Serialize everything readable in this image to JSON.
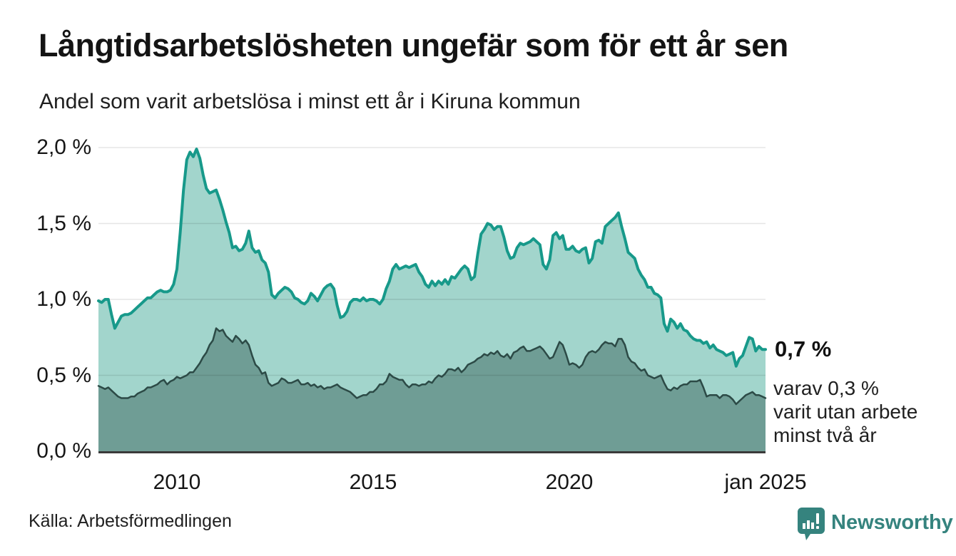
{
  "title": "Långtidsarbetslösheten ungefär som för ett år sen",
  "subtitle": "Andel som varit arbetslösa i minst ett år i Kiruna kommun",
  "annotation": {
    "value_label": "0,7 %",
    "detail_lines": [
      "varav 0,3 %",
      "varit utan arbete",
      "minst två år"
    ]
  },
  "source": "Källa: Arbetsförmedlingen",
  "logo": {
    "name": "Newsworthy"
  },
  "colors": {
    "line_total": "#17998a",
    "fill_total": "#a2d5cc",
    "line_two_year": "#2c4a46",
    "fill_two_year": "#6f9d95",
    "axis": "#3a3a3a",
    "grid": "rgba(0,0,0,0.10)",
    "logo_teal": "#35837e",
    "text": "#1a1a1a"
  },
  "chart_data": {
    "type": "area",
    "title": "Långtidsarbetslösheten ungefär som för ett år sen",
    "subtitle": "Andel som varit arbetslösa i minst ett år i Kiruna kommun",
    "x_unit": "month",
    "x_range": [
      "2008-01",
      "2025-01"
    ],
    "ylim": [
      0,
      2.0
    ],
    "grid": true,
    "legend_position": "none",
    "y_ticks": [
      {
        "value": 0.0,
        "label": "0,0 %"
      },
      {
        "value": 0.5,
        "label": "0,5 %"
      },
      {
        "value": 1.0,
        "label": "1,0 %"
      },
      {
        "value": 1.5,
        "label": "1,5 %"
      },
      {
        "value": 2.0,
        "label": "2,0 %"
      }
    ],
    "x_ticks": [
      {
        "month_index": 24,
        "label": "2010"
      },
      {
        "month_index": 84,
        "label": "2015"
      },
      {
        "month_index": 144,
        "label": "2020"
      },
      {
        "month_index": 204,
        "label": "jan 2025"
      }
    ],
    "series": [
      {
        "name": "Arbetslösa minst ett år",
        "end_label": "0,7 %",
        "values": [
          0.99,
          0.98,
          1.0,
          1.0,
          0.9,
          0.81,
          0.85,
          0.89,
          0.9,
          0.9,
          0.91,
          0.93,
          0.95,
          0.97,
          0.99,
          1.01,
          1.01,
          1.03,
          1.05,
          1.06,
          1.05,
          1.05,
          1.06,
          1.1,
          1.2,
          1.44,
          1.72,
          1.92,
          1.97,
          1.94,
          1.99,
          1.93,
          1.82,
          1.73,
          1.7,
          1.71,
          1.72,
          1.66,
          1.59,
          1.51,
          1.44,
          1.34,
          1.35,
          1.32,
          1.33,
          1.37,
          1.45,
          1.34,
          1.31,
          1.32,
          1.26,
          1.24,
          1.18,
          1.03,
          1.01,
          1.04,
          1.06,
          1.08,
          1.07,
          1.05,
          1.01,
          1.0,
          0.98,
          0.97,
          0.99,
          1.04,
          1.02,
          0.99,
          1.03,
          1.07,
          1.09,
          1.1,
          1.07,
          0.96,
          0.88,
          0.89,
          0.92,
          0.98,
          1.0,
          1.0,
          0.99,
          1.01,
          0.99,
          1.0,
          1.0,
          0.99,
          0.97,
          1.0,
          1.07,
          1.12,
          1.2,
          1.23,
          1.2,
          1.21,
          1.22,
          1.21,
          1.22,
          1.23,
          1.18,
          1.15,
          1.1,
          1.08,
          1.12,
          1.09,
          1.12,
          1.1,
          1.13,
          1.1,
          1.15,
          1.14,
          1.17,
          1.2,
          1.22,
          1.2,
          1.13,
          1.15,
          1.3,
          1.43,
          1.46,
          1.5,
          1.49,
          1.46,
          1.48,
          1.48,
          1.41,
          1.32,
          1.27,
          1.28,
          1.34,
          1.37,
          1.36,
          1.37,
          1.38,
          1.4,
          1.38,
          1.36,
          1.23,
          1.2,
          1.26,
          1.42,
          1.44,
          1.4,
          1.42,
          1.33,
          1.33,
          1.35,
          1.32,
          1.31,
          1.33,
          1.34,
          1.24,
          1.27,
          1.38,
          1.39,
          1.37,
          1.48,
          1.5,
          1.52,
          1.54,
          1.57,
          1.48,
          1.4,
          1.31,
          1.29,
          1.27,
          1.2,
          1.16,
          1.13,
          1.08,
          1.08,
          1.04,
          1.03,
          1.01,
          0.84,
          0.79,
          0.87,
          0.85,
          0.81,
          0.84,
          0.8,
          0.79,
          0.76,
          0.74,
          0.73,
          0.73,
          0.71,
          0.72,
          0.68,
          0.7,
          0.67,
          0.66,
          0.65,
          0.63,
          0.64,
          0.65,
          0.56,
          0.61,
          0.63,
          0.69,
          0.75,
          0.74,
          0.66,
          0.69,
          0.67,
          0.67
        ]
      },
      {
        "name": "Varit utan arbete minst två år",
        "end_label": "0,3 %",
        "values": [
          0.43,
          0.42,
          0.41,
          0.42,
          0.4,
          0.38,
          0.36,
          0.35,
          0.35,
          0.35,
          0.36,
          0.36,
          0.38,
          0.39,
          0.4,
          0.42,
          0.42,
          0.43,
          0.44,
          0.46,
          0.47,
          0.44,
          0.46,
          0.47,
          0.49,
          0.48,
          0.49,
          0.5,
          0.52,
          0.52,
          0.55,
          0.58,
          0.62,
          0.65,
          0.7,
          0.73,
          0.81,
          0.79,
          0.8,
          0.76,
          0.74,
          0.72,
          0.76,
          0.74,
          0.71,
          0.73,
          0.7,
          0.63,
          0.57,
          0.55,
          0.51,
          0.52,
          0.45,
          0.43,
          0.44,
          0.45,
          0.48,
          0.47,
          0.45,
          0.45,
          0.46,
          0.47,
          0.44,
          0.44,
          0.45,
          0.43,
          0.44,
          0.42,
          0.43,
          0.41,
          0.42,
          0.42,
          0.43,
          0.44,
          0.42,
          0.41,
          0.4,
          0.39,
          0.37,
          0.35,
          0.36,
          0.37,
          0.37,
          0.39,
          0.39,
          0.41,
          0.44,
          0.44,
          0.46,
          0.51,
          0.49,
          0.48,
          0.47,
          0.47,
          0.44,
          0.42,
          0.44,
          0.44,
          0.43,
          0.44,
          0.44,
          0.46,
          0.45,
          0.48,
          0.5,
          0.49,
          0.51,
          0.54,
          0.54,
          0.53,
          0.55,
          0.52,
          0.54,
          0.57,
          0.58,
          0.59,
          0.61,
          0.62,
          0.64,
          0.63,
          0.65,
          0.64,
          0.66,
          0.63,
          0.62,
          0.64,
          0.61,
          0.65,
          0.66,
          0.68,
          0.69,
          0.66,
          0.66,
          0.67,
          0.68,
          0.69,
          0.67,
          0.64,
          0.61,
          0.62,
          0.67,
          0.72,
          0.7,
          0.64,
          0.57,
          0.58,
          0.57,
          0.55,
          0.57,
          0.62,
          0.65,
          0.66,
          0.65,
          0.67,
          0.7,
          0.72,
          0.71,
          0.71,
          0.69,
          0.74,
          0.74,
          0.7,
          0.62,
          0.59,
          0.58,
          0.55,
          0.53,
          0.54,
          0.5,
          0.49,
          0.48,
          0.49,
          0.5,
          0.45,
          0.41,
          0.4,
          0.42,
          0.41,
          0.43,
          0.44,
          0.44,
          0.46,
          0.46,
          0.46,
          0.47,
          0.42,
          0.36,
          0.37,
          0.37,
          0.37,
          0.35,
          0.37,
          0.37,
          0.36,
          0.34,
          0.31,
          0.33,
          0.35,
          0.37,
          0.38,
          0.39,
          0.37,
          0.37,
          0.36,
          0.35
        ]
      }
    ]
  }
}
